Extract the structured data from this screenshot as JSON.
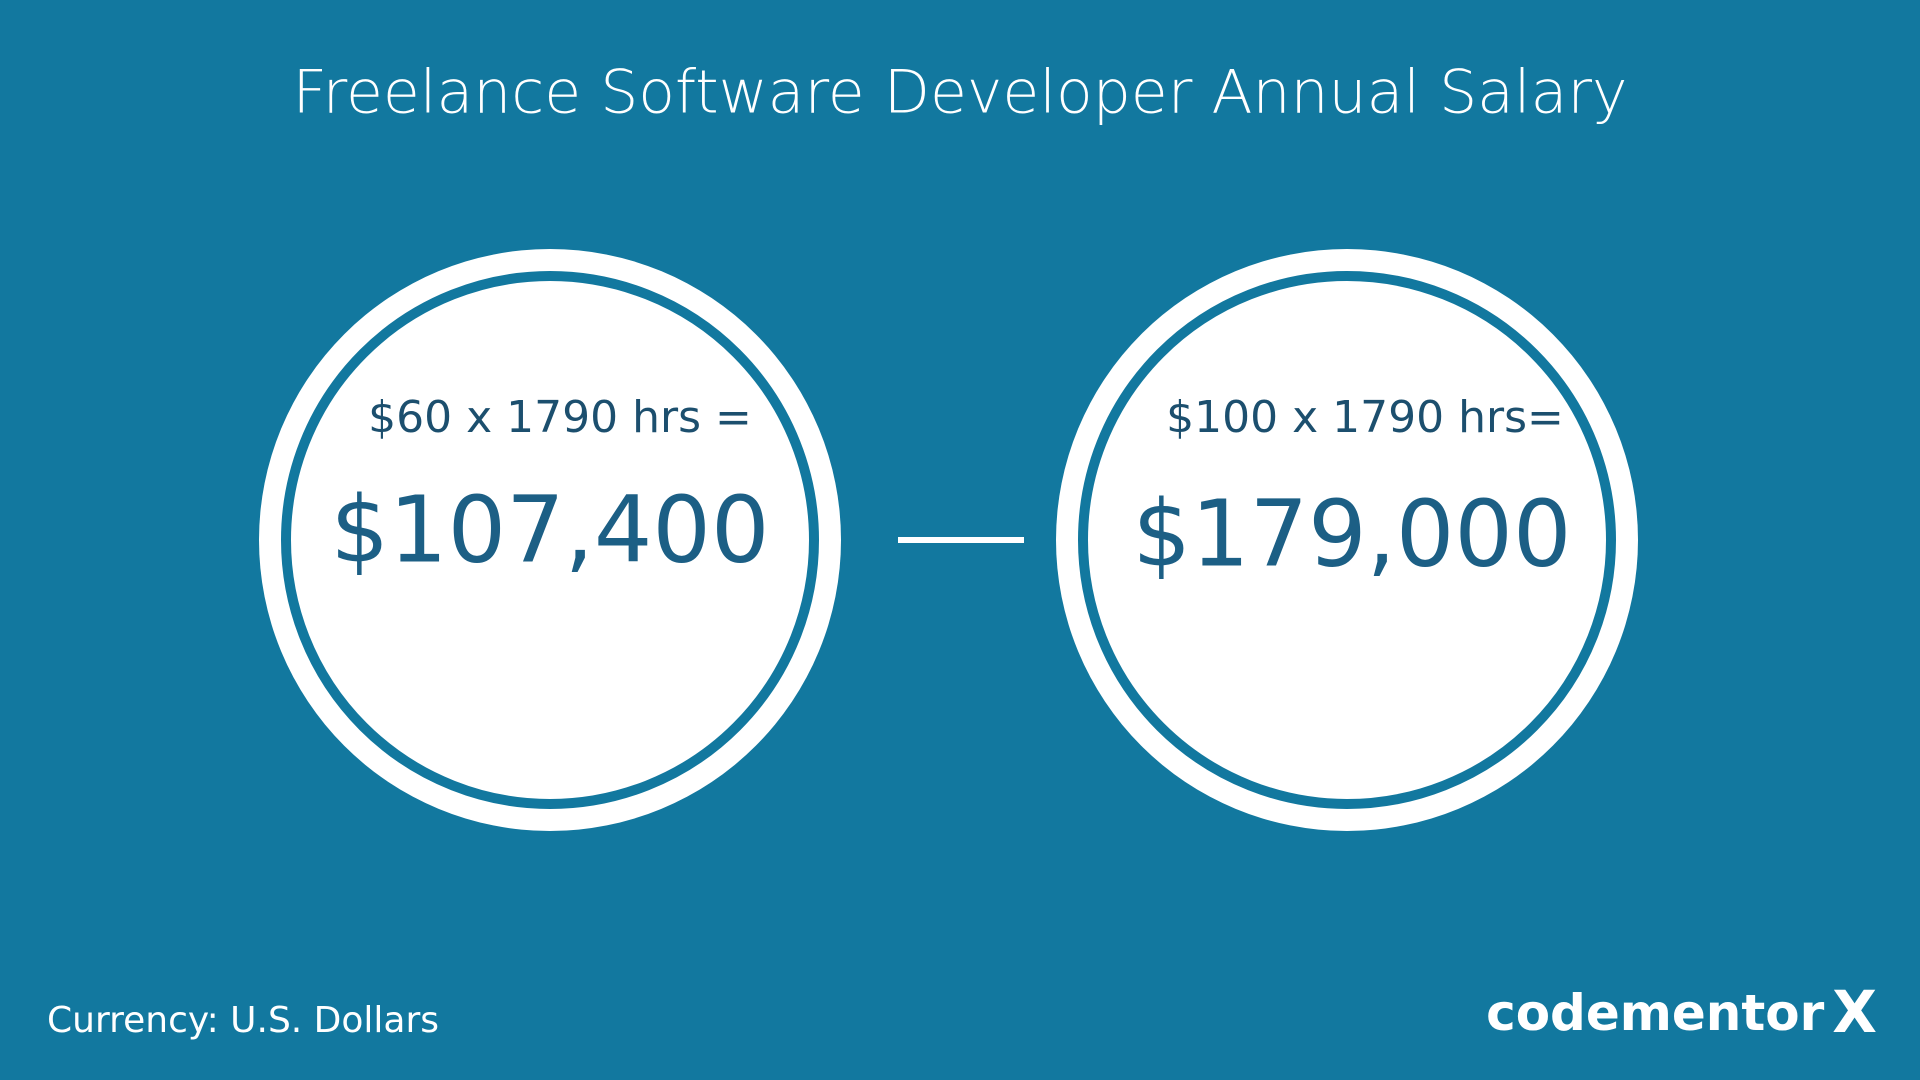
{
  "header": {
    "title": "Freelance Software Developer Annual Salary"
  },
  "circles": [
    {
      "formula": "$60 x 1790 hrs =",
      "amount": "$107,400"
    },
    {
      "formula": "$100 x 1790 hrs=",
      "amount": "$179,000"
    }
  ],
  "footer": {
    "currency": "Currency: U.S. Dollars",
    "logo_word": "codementor",
    "logo_mark": "X"
  }
}
